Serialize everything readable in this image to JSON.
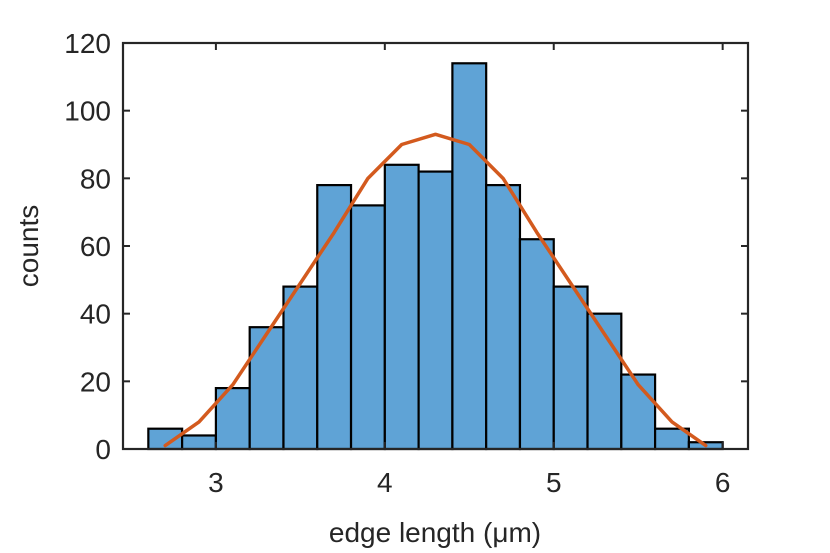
{
  "chart_data": {
    "type": "bar",
    "xlabel": "edge length (μm)",
    "ylabel": "counts",
    "xlim": [
      2.45,
      6.15
    ],
    "ylim": [
      0,
      120
    ],
    "xticks": [
      3,
      4,
      5,
      6
    ],
    "yticks": [
      0,
      20,
      40,
      60,
      80,
      100,
      120
    ],
    "grid": false,
    "box": true,
    "bin_width": 0.2,
    "bin_edges": [
      2.6,
      2.8,
      3.0,
      3.2,
      3.4,
      3.6,
      3.8,
      4.0,
      4.2,
      4.4,
      4.6,
      4.8,
      5.0,
      5.2,
      5.4,
      5.6,
      5.8,
      6.0
    ],
    "values": [
      6,
      4,
      18,
      36,
      48,
      78,
      72,
      84,
      82,
      114,
      78,
      62,
      48,
      40,
      22,
      6,
      2
    ],
    "fit_curve": {
      "x": [
        2.7,
        2.9,
        3.1,
        3.3,
        3.5,
        3.7,
        3.9,
        4.1,
        4.3,
        4.5,
        4.7,
        4.9,
        5.1,
        5.3,
        5.5,
        5.7,
        5.9
      ],
      "y": [
        1,
        8,
        19,
        34,
        49,
        64,
        80,
        90,
        93,
        90,
        80,
        64,
        49,
        34,
        19,
        8,
        1
      ]
    },
    "colors": {
      "bar_fill": "#5fa3d6",
      "bar_edge": "#000000",
      "fit_line": "#d35a1e",
      "axis": "#262626"
    }
  }
}
